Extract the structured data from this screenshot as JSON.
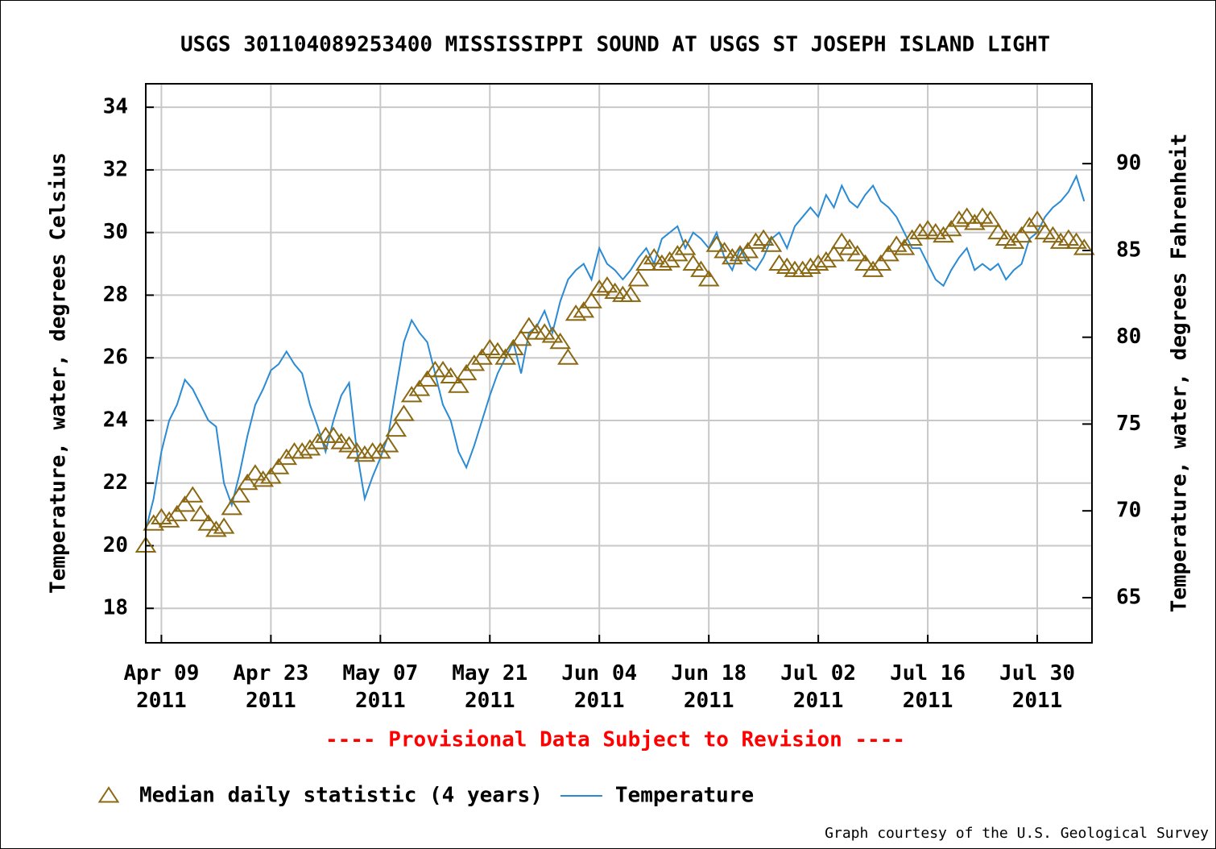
{
  "chart_data": {
    "type": "line",
    "title": "USGS 301104089253400 MISSISSIPPI SOUND AT USGS ST JOSEPH ISLAND LIGHT",
    "ylabel": "Temperature, water, degrees Celsius",
    "y2label": "Temperature, water, degrees Fahrenheit",
    "annotation": "---- Provisional Data Subject to Revision ----",
    "credit": "Graph courtesy of the U.S. Geological Survey",
    "grid": true,
    "legend": "bottom",
    "xlim": [
      "2011-04-07",
      "2011-08-06"
    ],
    "xticks": [
      {
        "value": "2011-04-09",
        "label": "Apr 09\n2011"
      },
      {
        "value": "2011-04-23",
        "label": "Apr 23\n2011"
      },
      {
        "value": "2011-05-07",
        "label": "May 07\n2011"
      },
      {
        "value": "2011-05-21",
        "label": "May 21\n2011"
      },
      {
        "value": "2011-06-04",
        "label": "Jun 04\n2011"
      },
      {
        "value": "2011-06-18",
        "label": "Jun 18\n2011"
      },
      {
        "value": "2011-07-02",
        "label": "Jul 02\n2011"
      },
      {
        "value": "2011-07-16",
        "label": "Jul 16\n2011"
      },
      {
        "value": "2011-07-30",
        "label": "Jul 30\n2011"
      }
    ],
    "ylim": [
      16.9,
      34.75
    ],
    "yticks": [
      18,
      20,
      22,
      24,
      26,
      28,
      30,
      32,
      34
    ],
    "y2lim": [
      62.4,
      94.6
    ],
    "y2ticks": [
      65,
      70,
      75,
      80,
      85,
      90
    ],
    "x": [
      "2011-04-07",
      "2011-04-08",
      "2011-04-09",
      "2011-04-10",
      "2011-04-11",
      "2011-04-12",
      "2011-04-13",
      "2011-04-14",
      "2011-04-15",
      "2011-04-16",
      "2011-04-17",
      "2011-04-18",
      "2011-04-19",
      "2011-04-20",
      "2011-04-21",
      "2011-04-22",
      "2011-04-23",
      "2011-04-24",
      "2011-04-25",
      "2011-04-26",
      "2011-04-27",
      "2011-04-28",
      "2011-04-29",
      "2011-04-30",
      "2011-05-01",
      "2011-05-02",
      "2011-05-03",
      "2011-05-04",
      "2011-05-05",
      "2011-05-06",
      "2011-05-07",
      "2011-05-08",
      "2011-05-09",
      "2011-05-10",
      "2011-05-11",
      "2011-05-12",
      "2011-05-13",
      "2011-05-14",
      "2011-05-15",
      "2011-05-16",
      "2011-05-17",
      "2011-05-18",
      "2011-05-19",
      "2011-05-20",
      "2011-05-21",
      "2011-05-22",
      "2011-05-23",
      "2011-05-24",
      "2011-05-25",
      "2011-05-26",
      "2011-05-27",
      "2011-05-28",
      "2011-05-29",
      "2011-05-30",
      "2011-05-31",
      "2011-06-01",
      "2011-06-02",
      "2011-06-03",
      "2011-06-04",
      "2011-06-05",
      "2011-06-06",
      "2011-06-07",
      "2011-06-08",
      "2011-06-09",
      "2011-06-10",
      "2011-06-11",
      "2011-06-12",
      "2011-06-13",
      "2011-06-14",
      "2011-06-15",
      "2011-06-16",
      "2011-06-17",
      "2011-06-18",
      "2011-06-19",
      "2011-06-20",
      "2011-06-21",
      "2011-06-22",
      "2011-06-23",
      "2011-06-24",
      "2011-06-25",
      "2011-06-26",
      "2011-06-27",
      "2011-06-28",
      "2011-06-29",
      "2011-06-30",
      "2011-07-01",
      "2011-07-02",
      "2011-07-03",
      "2011-07-04",
      "2011-07-05",
      "2011-07-06",
      "2011-07-07",
      "2011-07-08",
      "2011-07-09",
      "2011-07-10",
      "2011-07-11",
      "2011-07-12",
      "2011-07-13",
      "2011-07-14",
      "2011-07-15",
      "2011-07-16",
      "2011-07-17",
      "2011-07-18",
      "2011-07-19",
      "2011-07-20",
      "2011-07-21",
      "2011-07-22",
      "2011-07-23",
      "2011-07-24",
      "2011-07-25",
      "2011-07-26",
      "2011-07-27",
      "2011-07-28",
      "2011-07-29",
      "2011-07-30",
      "2011-07-31",
      "2011-08-01",
      "2011-08-02",
      "2011-08-03",
      "2011-08-04",
      "2011-08-05"
    ],
    "series": [
      {
        "name": "Median daily statistic (4 years)",
        "color": "#8b6914",
        "marker": "triangle",
        "values": [
          20.0,
          20.7,
          20.9,
          20.8,
          21.0,
          21.3,
          21.6,
          21.0,
          20.7,
          20.5,
          20.6,
          21.2,
          21.6,
          22.0,
          22.3,
          22.1,
          22.2,
          22.5,
          22.8,
          23.0,
          23.0,
          23.1,
          23.3,
          23.5,
          23.5,
          23.3,
          23.2,
          23.0,
          22.9,
          23.0,
          23.0,
          23.2,
          23.7,
          24.2,
          24.8,
          25.0,
          25.3,
          25.6,
          25.6,
          25.4,
          25.1,
          25.5,
          25.8,
          26.0,
          26.3,
          26.2,
          26.0,
          26.3,
          26.6,
          27.0,
          26.8,
          26.8,
          26.7,
          26.5,
          26.0,
          27.4,
          27.5,
          27.8,
          28.2,
          28.3,
          28.1,
          28.0,
          28.0,
          28.5,
          29.0,
          29.2,
          29.0,
          29.1,
          29.3,
          29.5,
          29.0,
          28.8,
          28.5,
          29.6,
          29.4,
          29.2,
          29.3,
          29.4,
          29.7,
          29.8,
          29.6,
          29.0,
          28.9,
          28.8,
          28.8,
          28.9,
          29.0,
          29.1,
          29.3,
          29.7,
          29.5,
          29.3,
          29.0,
          28.8,
          29.0,
          29.3,
          29.6,
          29.5,
          29.8,
          30.0,
          30.1,
          30.0,
          29.9,
          30.1,
          30.4,
          30.5,
          30.3,
          30.5,
          30.4,
          30.0,
          29.8,
          29.7,
          29.9,
          30.2,
          30.4,
          30.0,
          29.9,
          29.7,
          29.8,
          29.7,
          29.5
        ]
      },
      {
        "name": "Temperature",
        "color": "#2a8bd4",
        "marker": "line",
        "values": [
          20.5,
          21.5,
          23.0,
          24.0,
          24.5,
          25.3,
          25.0,
          24.5,
          24.0,
          23.8,
          22.0,
          21.3,
          22.3,
          23.5,
          24.5,
          25.0,
          25.6,
          25.8,
          26.2,
          25.8,
          25.5,
          24.5,
          23.8,
          23.0,
          24.0,
          24.8,
          25.2,
          23.0,
          21.5,
          22.2,
          22.8,
          23.5,
          25.0,
          26.5,
          27.2,
          26.8,
          26.5,
          25.5,
          24.5,
          24.0,
          23.0,
          22.5,
          23.2,
          24.0,
          24.8,
          25.5,
          26.0,
          26.5,
          25.5,
          26.8,
          27.0,
          27.5,
          26.8,
          27.8,
          28.5,
          28.8,
          29.0,
          28.5,
          29.5,
          29.0,
          28.8,
          28.5,
          28.8,
          29.2,
          29.5,
          29.0,
          29.8,
          30.0,
          30.2,
          29.5,
          30.0,
          29.8,
          29.5,
          30.0,
          29.2,
          28.8,
          29.5,
          29.0,
          28.8,
          29.2,
          29.8,
          30.0,
          29.5,
          30.2,
          30.5,
          30.8,
          30.5,
          31.2,
          30.8,
          31.5,
          31.0,
          30.8,
          31.2,
          31.5,
          31.0,
          30.8,
          30.5,
          30.0,
          29.5,
          29.5,
          29.0,
          28.5,
          28.3,
          28.8,
          29.2,
          29.5,
          28.8,
          29.0,
          28.8,
          29.0,
          28.5,
          28.8,
          29.0,
          29.8,
          30.0,
          30.5,
          30.8,
          31.0,
          31.3,
          31.8,
          31.0
        ]
      }
    ]
  }
}
